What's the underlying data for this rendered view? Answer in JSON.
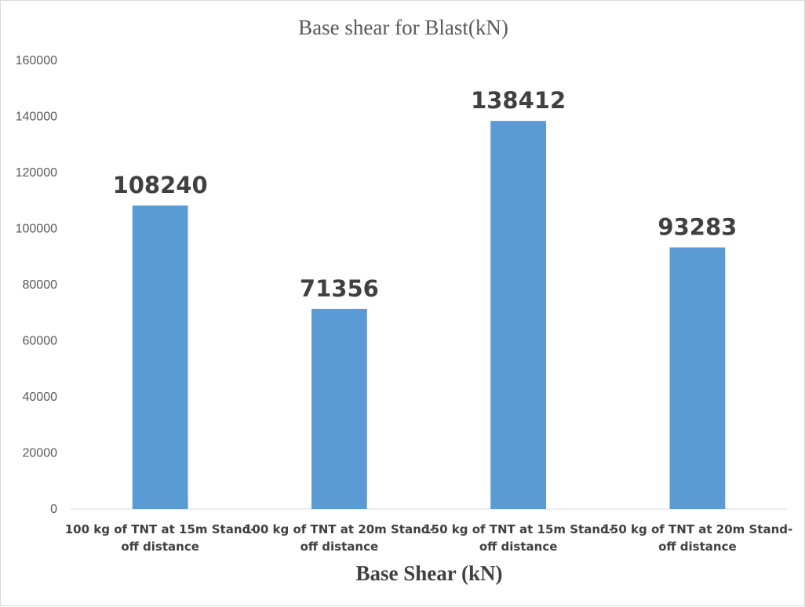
{
  "chart_data": {
    "type": "bar",
    "title": "Base shear for Blast(kN)",
    "xlabel": "Base Shear (kN)",
    "ylabel": "",
    "categories": [
      [
        "100 kg of TNT at 15m Stand-",
        "off distance"
      ],
      [
        "100 kg of TNT at 20m Stand-",
        "off distance"
      ],
      [
        "150 kg of TNT at 15m Stand-",
        "off distance"
      ],
      [
        "150 kg of TNT at 20m Stand-",
        "off distance"
      ]
    ],
    "values": [
      108240,
      71356,
      138412,
      93283
    ],
    "data_labels": [
      "108240",
      "71356",
      "138412",
      "93283"
    ],
    "ylim": [
      0,
      160000
    ],
    "y_ticks": [
      0,
      20000,
      40000,
      60000,
      80000,
      100000,
      120000,
      140000,
      160000
    ],
    "y_tick_labels": [
      "0",
      "20000",
      "40000",
      "60000",
      "80000",
      "100000",
      "120000",
      "140000",
      "160000"
    ],
    "grid": false,
    "legend": "none",
    "bar_color": "#5b9bd5"
  }
}
